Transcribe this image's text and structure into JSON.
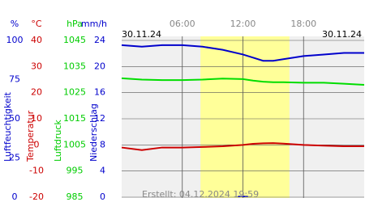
{
  "chart_data": {
    "type": "line",
    "date_left": "30.11.24",
    "date_right": "30.11.24",
    "created": "Erstellt: 04.12.2024 19:59",
    "x": [
      0,
      2,
      4,
      6,
      8,
      10,
      12,
      13,
      14,
      15,
      16,
      18,
      20,
      22,
      24
    ],
    "xlim": [
      0,
      24
    ],
    "xticks": [
      {
        "value": 6,
        "label": "06:00"
      },
      {
        "value": 12,
        "label": "12:00"
      },
      {
        "value": 18,
        "label": "18:00"
      }
    ],
    "daylight": [
      7.8,
      16.6
    ],
    "grid": true,
    "axes": [
      {
        "unit": "%",
        "label": "Luftfeuchtigkeit",
        "color": "#0000cc",
        "ylim": [
          0,
          100
        ],
        "yticks": [
          0,
          25,
          50,
          75,
          100
        ]
      },
      {
        "unit": "°C",
        "label": "Temperatur",
        "color": "#cc0000",
        "ylim": [
          -20,
          40
        ],
        "yticks": [
          -20,
          -10,
          0,
          10,
          20,
          30,
          40
        ]
      },
      {
        "unit": "hPa",
        "label": "Luftdruck",
        "color": "#00cc00",
        "ylim": [
          985,
          1045
        ],
        "yticks": [
          985,
          995,
          1005,
          1015,
          1025,
          1035,
          1045
        ]
      },
      {
        "unit": "mm/h",
        "label": "Niederschlag",
        "color": "#0000cc",
        "ylim": [
          0,
          24
        ],
        "yticks": [
          0,
          4,
          8,
          12,
          16,
          20,
          24
        ]
      }
    ],
    "series": [
      {
        "axis": 0,
        "kind": "line",
        "color": "#0000cc",
        "values": [
          97,
          96,
          97,
          97,
          96,
          94,
          91,
          89,
          87,
          87,
          88,
          90,
          91,
          92,
          92
        ]
      },
      {
        "axis": 1,
        "kind": "line",
        "color": "#cc0000",
        "values": [
          -1,
          -2,
          -1,
          -1,
          -0.8,
          -0.5,
          0,
          0.4,
          0.6,
          0.7,
          0.5,
          0,
          -0.3,
          -0.5,
          -0.5
        ]
      },
      {
        "axis": 2,
        "kind": "line",
        "color": "#00dd00",
        "values": [
          1030.5,
          1030,
          1029.8,
          1029.8,
          1030,
          1030.4,
          1030.2,
          1029.6,
          1029.2,
          1029,
          1029,
          1028.8,
          1028.8,
          1028.4,
          1028
        ]
      },
      {
        "axis": 3,
        "kind": "bar",
        "color": "#0000cc",
        "values": [
          0,
          0,
          0,
          0,
          0,
          0,
          0.2,
          0,
          0,
          0,
          0,
          0,
          0,
          0,
          0
        ]
      }
    ]
  }
}
